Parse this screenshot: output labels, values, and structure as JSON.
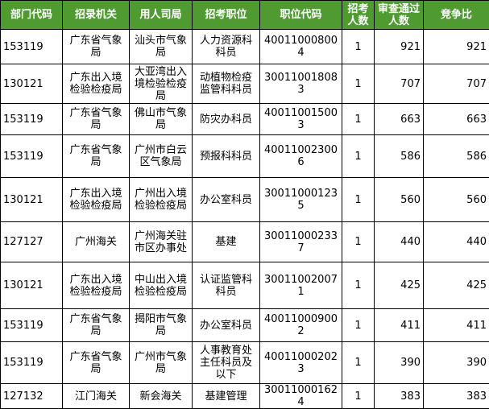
{
  "table": {
    "header": [
      "部门代码",
      "招录机关",
      "用人司局",
      "招考职位",
      "职位代码",
      "招考人数",
      "审查通过人数",
      "竞争比"
    ],
    "rows": [
      [
        "153119",
        "广东省气象局",
        "汕头市气象局",
        "人力资源科科员",
        "400110008004",
        1,
        921,
        921
      ],
      [
        "130121",
        "广东出入境检验检疫局",
        "大亚湾出入境检验检疫局",
        "动植物检疫监管科科员",
        "300110018083",
        1,
        707,
        707
      ],
      [
        "153119",
        "广东省气象局",
        "佛山市气象局",
        "防灾办科员",
        "400110015003",
        1,
        663,
        663
      ],
      [
        "153119",
        "广东省气象局",
        "广州市白云区气象局",
        "预报科科员",
        "400110023006",
        1,
        586,
        586
      ],
      [
        "130121",
        "广东出入境检验检疫局",
        "广州出入境检验检疫局",
        "办公室科员",
        "300110001235",
        1,
        560,
        560
      ],
      [
        "127127",
        "广州海关",
        "广州海关驻市区办事处",
        "基建",
        "300110002337",
        1,
        440,
        440
      ],
      [
        "130121",
        "广东出入境检验检疫局",
        "中山出入境检验检疫局",
        "认证监管科科员",
        "300110020071",
        1,
        425,
        425
      ],
      [
        "153119",
        "广东省气象局",
        "揭阳市气象局",
        "办公室科员",
        "400110009002",
        1,
        411,
        411
      ],
      [
        "153119",
        "广东省气象局",
        "广州市气象局",
        "人事教育处主任科员及以下",
        "400110002023",
        1,
        390,
        390
      ],
      [
        "127132",
        "江门海关",
        "新会海关",
        "基建管理",
        "300110001624",
        1,
        383,
        383
      ]
    ]
  }
}
